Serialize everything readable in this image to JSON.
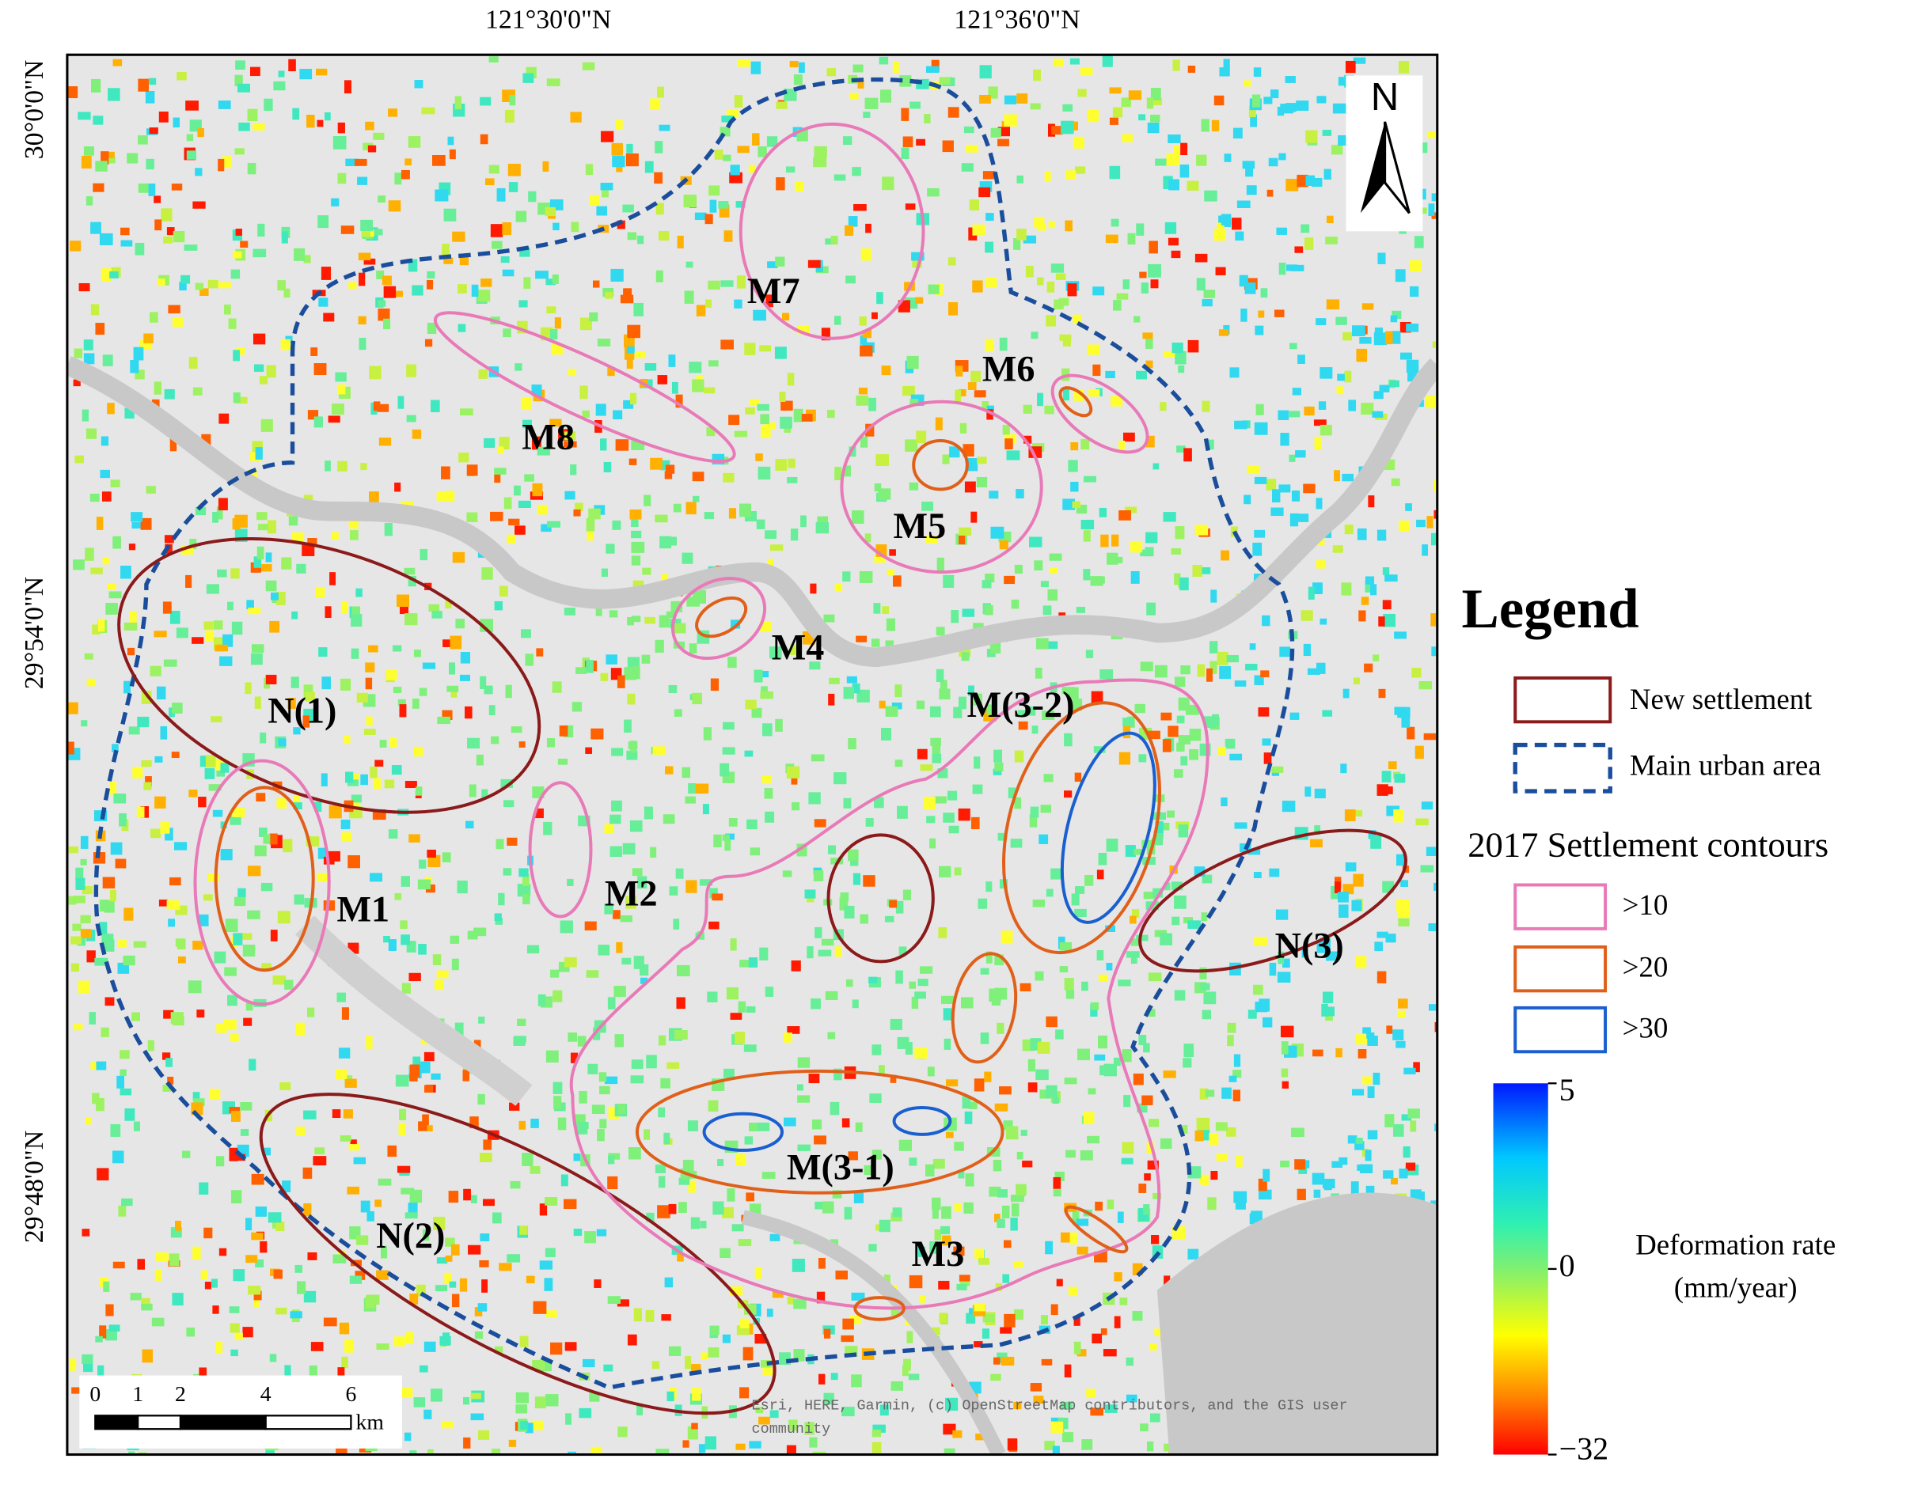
{
  "map": {
    "top_coords": [
      "121°30'0\"N",
      "121°36'0\"N"
    ],
    "left_coords": [
      "30°0'0\"N",
      "29°54'0\"N",
      "29°48'0\"N"
    ],
    "regions": [
      "M7",
      "M6",
      "M8",
      "M5",
      "M4",
      "N(1)",
      "M(3-2)",
      "M1",
      "M2",
      "N(3)",
      "M(3-1)",
      "N(2)",
      "M3"
    ],
    "north": "N",
    "attribution": [
      "Esri, HERE, Garmin, (c) OpenStreetMap contributors, and the GIS user",
      "community"
    ],
    "scale_bar": {
      "ticks": [
        0,
        1,
        2,
        4,
        6
      ],
      "unit": "km"
    }
  },
  "legend": {
    "title": "Legend",
    "items": [
      "New settlement",
      "Main urban area"
    ],
    "contours_title": "2017 Settlement contours",
    "contours": [
      ">10",
      ">20",
      ">30"
    ],
    "colorbar": {
      "label": [
        "Deformation rate",
        "(mm/year)"
      ],
      "lim": [
        -32,
        5
      ],
      "ticks": [
        5,
        0,
        {
          "value": -32,
          "label": "−32"
        }
      ]
    }
  }
}
